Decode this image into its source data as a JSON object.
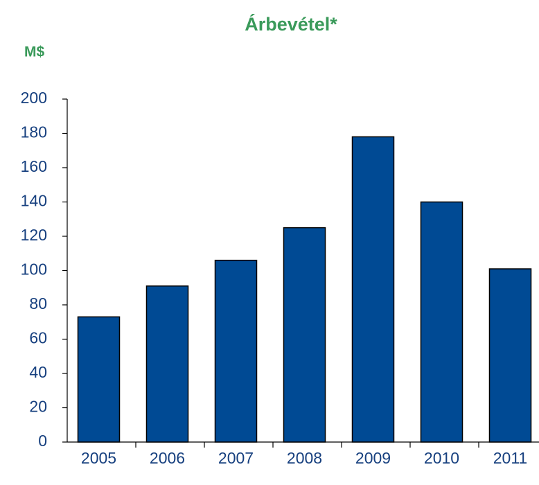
{
  "chart_data": {
    "type": "bar",
    "title": "Árbevétel*",
    "y_axis_label": "M$",
    "categories": [
      "2005",
      "2006",
      "2007",
      "2008",
      "2009",
      "2010",
      "2011"
    ],
    "values": [
      73,
      91,
      106,
      125,
      178,
      140,
      101
    ],
    "color": "#004a94",
    "ylim": [
      0,
      200
    ],
    "yticks": [
      0,
      20,
      40,
      60,
      80,
      100,
      120,
      140,
      160,
      180,
      200
    ],
    "grid": false
  }
}
